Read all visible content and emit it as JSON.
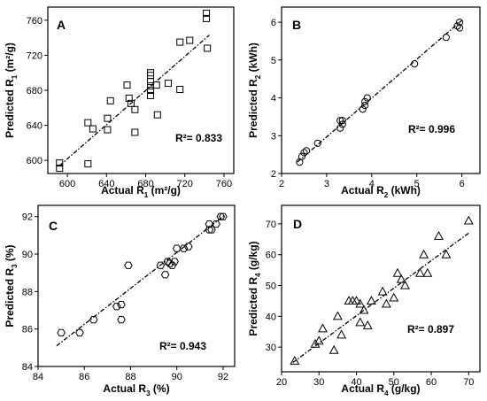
{
  "chart_data": [
    {
      "type": "scatter",
      "panel": "A",
      "marker": "square",
      "xlabel": "Actual R",
      "xlabel_sub": "1",
      "xlabel_unit": " (m²/g)",
      "ylabel": "Predicted R",
      "ylabel_sub": "1",
      "ylabel_unit": " (m²/g)",
      "xlim": [
        580,
        770
      ],
      "ylim": [
        585,
        775
      ],
      "xticks": [
        600,
        640,
        680,
        720,
        760
      ],
      "yticks": [
        600,
        640,
        680,
        720,
        760
      ],
      "r2_text": "R²= 0.833",
      "fit_line": [
        [
          592,
          594
        ],
        [
          745,
          743
        ]
      ],
      "points": [
        {
          "x": 592,
          "y": 597
        },
        {
          "x": 592,
          "y": 591
        },
        {
          "x": 621,
          "y": 643
        },
        {
          "x": 621,
          "y": 596
        },
        {
          "x": 626,
          "y": 636
        },
        {
          "x": 641,
          "y": 648
        },
        {
          "x": 641,
          "y": 635
        },
        {
          "x": 644,
          "y": 668
        },
        {
          "x": 661,
          "y": 686
        },
        {
          "x": 663,
          "y": 671
        },
        {
          "x": 665,
          "y": 665
        },
        {
          "x": 669,
          "y": 658
        },
        {
          "x": 669,
          "y": 632
        },
        {
          "x": 685,
          "y": 700
        },
        {
          "x": 685,
          "y": 697
        },
        {
          "x": 685,
          "y": 690
        },
        {
          "x": 685,
          "y": 685
        },
        {
          "x": 685,
          "y": 680
        },
        {
          "x": 685,
          "y": 674
        },
        {
          "x": 691,
          "y": 686
        },
        {
          "x": 692,
          "y": 652
        },
        {
          "x": 703,
          "y": 688
        },
        {
          "x": 715,
          "y": 735
        },
        {
          "x": 715,
          "y": 681
        },
        {
          "x": 725,
          "y": 737
        },
        {
          "x": 742,
          "y": 768
        },
        {
          "x": 742,
          "y": 762
        },
        {
          "x": 743,
          "y": 728
        }
      ]
    },
    {
      "type": "scatter",
      "panel": "B",
      "marker": "circle",
      "xlabel": "Actual R",
      "xlabel_sub": "2",
      "xlabel_unit": " (kWh)",
      "ylabel": "Predicted R",
      "ylabel_sub": "2",
      "ylabel_unit": " (kWh)",
      "xlim": [
        2,
        6.4
      ],
      "ylim": [
        2,
        6.4
      ],
      "xticks": [
        2,
        3,
        4,
        5,
        6
      ],
      "yticks": [
        2,
        3,
        4,
        5,
        6
      ],
      "r2_text": "R²= 0.996",
      "fit_line": [
        [
          2.35,
          2.3
        ],
        [
          6.0,
          6.05
        ]
      ],
      "points": [
        {
          "x": 2.4,
          "y": 2.3
        },
        {
          "x": 2.45,
          "y": 2.45
        },
        {
          "x": 2.5,
          "y": 2.55
        },
        {
          "x": 2.55,
          "y": 2.6
        },
        {
          "x": 2.8,
          "y": 2.8
        },
        {
          "x": 3.3,
          "y": 3.2
        },
        {
          "x": 3.3,
          "y": 3.4
        },
        {
          "x": 3.35,
          "y": 3.3
        },
        {
          "x": 3.35,
          "y": 3.4
        },
        {
          "x": 3.8,
          "y": 3.7
        },
        {
          "x": 3.85,
          "y": 3.8
        },
        {
          "x": 3.85,
          "y": 3.9
        },
        {
          "x": 3.9,
          "y": 4.0
        },
        {
          "x": 4.95,
          "y": 4.9
        },
        {
          "x": 5.65,
          "y": 5.6
        },
        {
          "x": 5.9,
          "y": 5.9
        },
        {
          "x": 5.95,
          "y": 6.0
        },
        {
          "x": 5.95,
          "y": 5.85
        }
      ]
    },
    {
      "type": "scatter",
      "panel": "C",
      "marker": "hexagon",
      "xlabel": "Actual R",
      "xlabel_sub": "3",
      "xlabel_unit": " (%)",
      "ylabel": "Predicted R",
      "ylabel_sub": "3",
      "ylabel_unit": " (%)",
      "xlim": [
        84,
        92.5
      ],
      "ylim": [
        84,
        92.6
      ],
      "xticks": [
        84,
        86,
        88,
        90,
        92
      ],
      "yticks": [
        84,
        86,
        88,
        90,
        92
      ],
      "r2_text": "R²= 0.943",
      "fit_line": [
        [
          84.8,
          85.1
        ],
        [
          92.1,
          92.1
        ]
      ],
      "points": [
        {
          "x": 85.0,
          "y": 85.8
        },
        {
          "x": 85.8,
          "y": 85.8
        },
        {
          "x": 86.4,
          "y": 86.5
        },
        {
          "x": 87.4,
          "y": 87.2
        },
        {
          "x": 87.6,
          "y": 87.3
        },
        {
          "x": 87.6,
          "y": 86.5
        },
        {
          "x": 87.9,
          "y": 89.4
        },
        {
          "x": 89.3,
          "y": 89.4
        },
        {
          "x": 89.5,
          "y": 88.9
        },
        {
          "x": 89.6,
          "y": 89.6
        },
        {
          "x": 89.7,
          "y": 89.5
        },
        {
          "x": 89.8,
          "y": 89.4
        },
        {
          "x": 89.9,
          "y": 89.6
        },
        {
          "x": 90.0,
          "y": 90.3
        },
        {
          "x": 90.3,
          "y": 90.3
        },
        {
          "x": 90.5,
          "y": 90.4
        },
        {
          "x": 91.4,
          "y": 91.3
        },
        {
          "x": 91.4,
          "y": 91.6
        },
        {
          "x": 91.5,
          "y": 91.3
        },
        {
          "x": 91.7,
          "y": 91.6
        },
        {
          "x": 91.9,
          "y": 92.0
        },
        {
          "x": 92.0,
          "y": 92.0
        }
      ]
    },
    {
      "type": "scatter",
      "panel": "D",
      "marker": "triangle",
      "xlabel": "Actual R",
      "xlabel_sub": "4",
      "xlabel_unit": " (g/kg)",
      "ylabel": "Predicted R",
      "ylabel_sub": "4",
      "ylabel_unit": " (g/kg)",
      "xlim": [
        20,
        73
      ],
      "ylim": [
        22,
        76
      ],
      "xticks": [
        20,
        30,
        40,
        50,
        60,
        70
      ],
      "yticks": [
        30,
        40,
        50,
        60,
        70
      ],
      "r2_text": "R²= 0.897",
      "fit_line": [
        [
          23,
          25
        ],
        [
          70,
          67
        ]
      ],
      "points": [
        {
          "x": 23.5,
          "y": 25.5
        },
        {
          "x": 29,
          "y": 31
        },
        {
          "x": 30,
          "y": 32
        },
        {
          "x": 31,
          "y": 36
        },
        {
          "x": 34,
          "y": 29
        },
        {
          "x": 35,
          "y": 40
        },
        {
          "x": 36,
          "y": 34
        },
        {
          "x": 38,
          "y": 45
        },
        {
          "x": 39,
          "y": 45
        },
        {
          "x": 40,
          "y": 45
        },
        {
          "x": 41,
          "y": 38
        },
        {
          "x": 41,
          "y": 44
        },
        {
          "x": 42,
          "y": 42
        },
        {
          "x": 43,
          "y": 37
        },
        {
          "x": 44,
          "y": 45
        },
        {
          "x": 47,
          "y": 48
        },
        {
          "x": 48,
          "y": 44
        },
        {
          "x": 50,
          "y": 46
        },
        {
          "x": 51,
          "y": 54
        },
        {
          "x": 52,
          "y": 52
        },
        {
          "x": 53,
          "y": 50
        },
        {
          "x": 57,
          "y": 54
        },
        {
          "x": 58,
          "y": 60
        },
        {
          "x": 59,
          "y": 54
        },
        {
          "x": 62,
          "y": 66
        },
        {
          "x": 64,
          "y": 60
        },
        {
          "x": 70,
          "y": 71
        }
      ]
    }
  ]
}
